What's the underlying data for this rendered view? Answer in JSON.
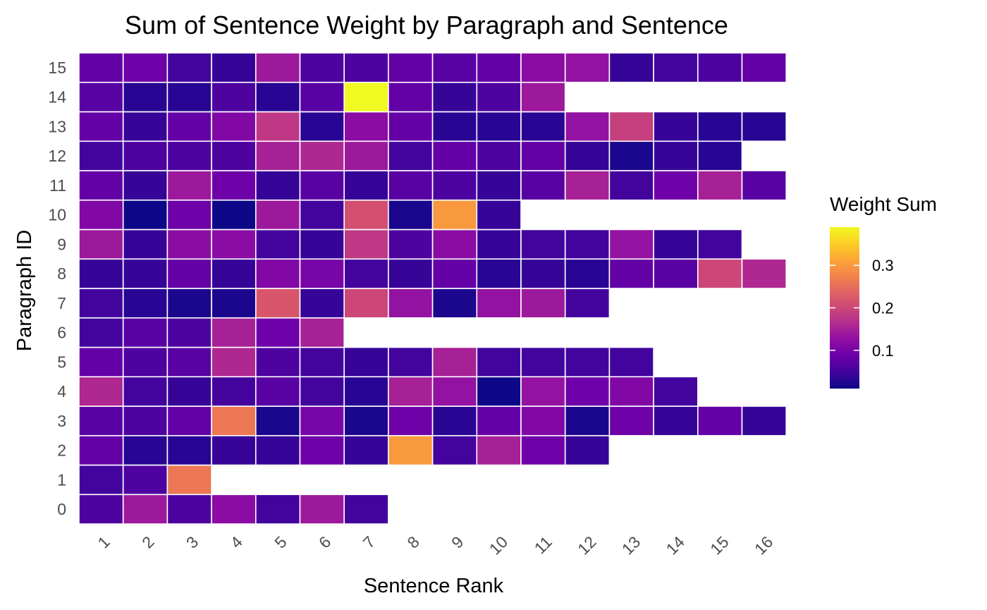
{
  "chart_data": {
    "type": "heatmap",
    "title": "Sum of Sentence Weight by Paragraph and Sentence",
    "xlabel": "Sentence Rank",
    "ylabel": "Paragraph ID",
    "x_categories": [
      "1",
      "2",
      "3",
      "4",
      "5",
      "6",
      "7",
      "8",
      "9",
      "10",
      "11",
      "12",
      "13",
      "14",
      "15",
      "16"
    ],
    "y_categories": [
      "0",
      "1",
      "2",
      "3",
      "4",
      "5",
      "6",
      "7",
      "8",
      "9",
      "10",
      "11",
      "12",
      "13",
      "14",
      "15"
    ],
    "values": {
      "0": [
        0.06,
        0.14,
        0.06,
        0.12,
        0.05,
        0.14,
        0.05
      ],
      "1": [
        0.05,
        0.06,
        0.26
      ],
      "2": [
        0.08,
        0.03,
        0.03,
        0.04,
        0.04,
        0.09,
        0.04,
        0.3,
        0.05,
        0.15,
        0.09,
        0.04
      ],
      "3": [
        0.07,
        0.06,
        0.08,
        0.26,
        0.02,
        0.1,
        0.02,
        0.09,
        0.03,
        0.08,
        0.11,
        0.02,
        0.09,
        0.04,
        0.08,
        0.04
      ],
      "4": [
        0.16,
        0.05,
        0.04,
        0.05,
        0.07,
        0.05,
        0.03,
        0.15,
        0.13,
        0.01,
        0.13,
        0.09,
        0.11,
        0.05
      ],
      "5": [
        0.08,
        0.06,
        0.07,
        0.16,
        0.06,
        0.05,
        0.04,
        0.05,
        0.15,
        0.05,
        0.05,
        0.05,
        0.05
      ],
      "6": [
        0.05,
        0.07,
        0.06,
        0.15,
        0.09,
        0.15
      ],
      "7": [
        0.05,
        0.03,
        0.02,
        0.02,
        0.22,
        0.04,
        0.2,
        0.13,
        0.02,
        0.13,
        0.14,
        0.05
      ],
      "8": [
        0.04,
        0.04,
        0.08,
        0.04,
        0.11,
        0.1,
        0.05,
        0.04,
        0.08,
        0.03,
        0.04,
        0.03,
        0.08,
        0.07,
        0.2,
        0.16
      ],
      "9": [
        0.14,
        0.04,
        0.12,
        0.12,
        0.05,
        0.04,
        0.18,
        0.06,
        0.12,
        0.04,
        0.05,
        0.05,
        0.13,
        0.04,
        0.05
      ],
      "10": [
        0.11,
        0.01,
        0.09,
        0.01,
        0.14,
        0.05,
        0.21,
        0.02,
        0.3,
        0.04
      ],
      "11": [
        0.08,
        0.04,
        0.14,
        0.09,
        0.04,
        0.07,
        0.04,
        0.07,
        0.06,
        0.04,
        0.07,
        0.15,
        0.05,
        0.09,
        0.15,
        0.07
      ],
      "12": [
        0.05,
        0.06,
        0.06,
        0.06,
        0.15,
        0.16,
        0.14,
        0.05,
        0.08,
        0.06,
        0.08,
        0.04,
        0.02,
        0.04,
        0.03
      ],
      "13": [
        0.08,
        0.04,
        0.08,
        0.11,
        0.18,
        0.03,
        0.12,
        0.08,
        0.03,
        0.03,
        0.03,
        0.13,
        0.19,
        0.04,
        0.03,
        0.03
      ],
      "14": [
        0.07,
        0.03,
        0.03,
        0.06,
        0.03,
        0.07,
        0.39,
        0.08,
        0.04,
        0.06,
        0.14
      ],
      "15": [
        0.08,
        0.09,
        0.05,
        0.04,
        0.14,
        0.06,
        0.06,
        0.08,
        0.07,
        0.08,
        0.12,
        0.13,
        0.04,
        0.05,
        0.06,
        0.08
      ]
    },
    "legend": {
      "title": "Weight Sum",
      "min": 0.01,
      "max": 0.39,
      "ticks": [
        0.1,
        0.2,
        0.3
      ],
      "tick_labels": [
        "0.1",
        "0.2",
        "0.3"
      ],
      "placement": "right"
    },
    "colorscale": "plasma",
    "cell_border_color": "#ffffff",
    "grid": false
  }
}
